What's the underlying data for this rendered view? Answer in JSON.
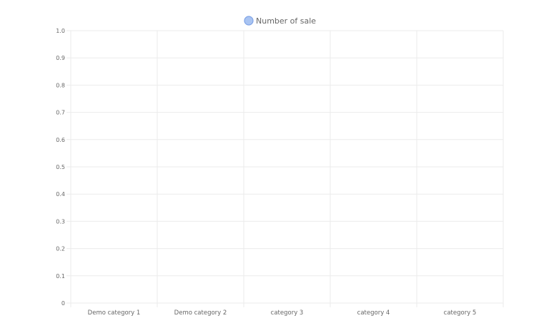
{
  "chart_data": {
    "type": "bar",
    "title": "",
    "xlabel": "",
    "ylabel": "",
    "categories": [
      "Demo category 1",
      "Demo category 2",
      "category  3",
      "category 4",
      "category 5"
    ],
    "series": [
      {
        "name": "Number of sale",
        "values": [
          0,
          0,
          0,
          0,
          0
        ],
        "color": "#a9c4f2",
        "border_color": "#7fa3e6"
      }
    ],
    "y_ticks": [
      "0",
      "0.1",
      "0.2",
      "0.3",
      "0.4",
      "0.5",
      "0.6",
      "0.7",
      "0.8",
      "0.9",
      "1.0"
    ],
    "ylim": [
      0,
      1
    ],
    "grid": true,
    "legend": "top-center",
    "colors": {
      "grid": "#ebebeb",
      "axis_text": "#666666"
    }
  }
}
